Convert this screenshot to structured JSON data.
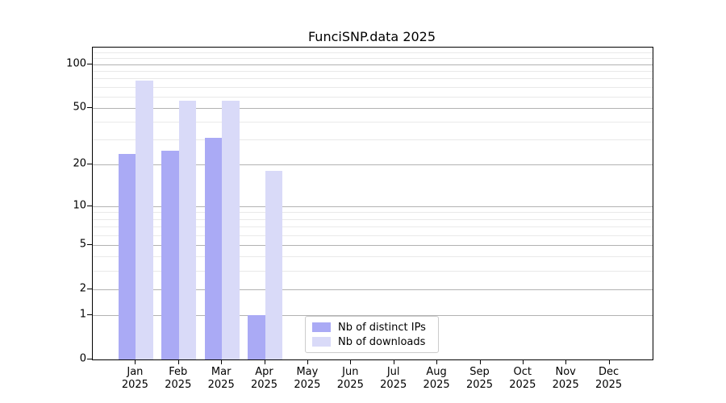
{
  "chart_data": {
    "type": "bar",
    "title": "FunciSNP.data 2025",
    "months": [
      "Jan",
      "Feb",
      "Mar",
      "Apr",
      "May",
      "Jun",
      "Jul",
      "Aug",
      "Sep",
      "Oct",
      "Nov",
      "Dec"
    ],
    "year_label": "2025",
    "categories": [
      "Jan 2025",
      "Feb 2025",
      "Mar 2025",
      "Apr 2025",
      "May 2025",
      "Jun 2025",
      "Jul 2025",
      "Aug 2025",
      "Sep 2025",
      "Oct 2025",
      "Nov 2025",
      "Dec 2025"
    ],
    "series": [
      {
        "name": "Nb of distinct IPs",
        "color": "#aaaaf5",
        "values": [
          24,
          25,
          31,
          1,
          0,
          0,
          0,
          0,
          0,
          0,
          0,
          0
        ]
      },
      {
        "name": "Nb of downloads",
        "color": "#d9daf8",
        "values": [
          77,
          56,
          56,
          18,
          0,
          0,
          0,
          0,
          0,
          0,
          0,
          0
        ]
      }
    ],
    "y_axis": {
      "scale": "log1p",
      "ylim": [
        0,
        130
      ],
      "major_ticks": [
        0,
        1,
        2,
        5,
        10,
        20,
        50,
        100
      ],
      "minor_ticks": [
        3,
        4,
        6,
        7,
        8,
        9,
        30,
        40,
        60,
        70,
        80,
        90,
        110,
        120
      ]
    },
    "xlabel": "",
    "ylabel": "",
    "grid": "on",
    "legend": {
      "position": "bottom-center",
      "entries": [
        "Nb of distinct IPs",
        "Nb of downloads"
      ]
    },
    "colors": {
      "background": "#ffffff",
      "spine": "#000000",
      "major_grid": "#b2b2b2",
      "minor_grid": "#e9e9e9",
      "text": "#000000",
      "legend_border": "#cccccc"
    }
  }
}
